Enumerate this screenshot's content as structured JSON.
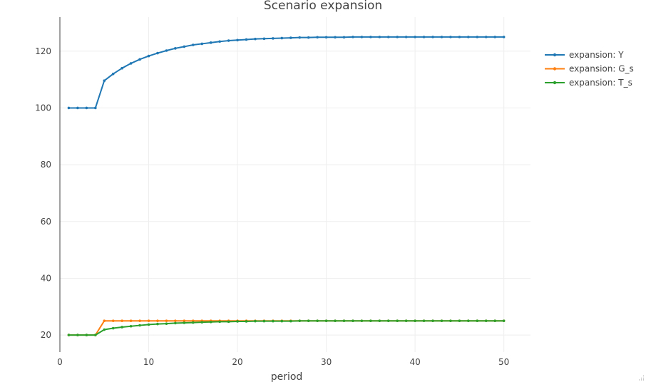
{
  "chart_data": {
    "type": "line",
    "title": "Scenario expansion",
    "xlabel": "period",
    "ylabel": "",
    "xlim": [
      0,
      53
    ],
    "ylim": [
      14,
      132
    ],
    "xticks": [
      0,
      10,
      20,
      30,
      40,
      50
    ],
    "yticks": [
      20,
      40,
      60,
      80,
      100,
      120
    ],
    "grid": true,
    "legend": "top-right",
    "x": [
      1,
      2,
      3,
      4,
      5,
      6,
      7,
      8,
      9,
      10,
      11,
      12,
      13,
      14,
      15,
      16,
      17,
      18,
      19,
      20,
      21,
      22,
      23,
      24,
      25,
      26,
      27,
      28,
      29,
      30,
      31,
      32,
      33,
      34,
      35,
      36,
      37,
      38,
      39,
      40,
      41,
      42,
      43,
      44,
      45,
      46,
      47,
      48,
      49,
      50
    ],
    "series": [
      {
        "name": "expansion: Y",
        "color": "#1f77b4",
        "values": [
          100,
          100,
          100,
          100,
          109.6,
          112.0,
          114.0,
          115.7,
          117.1,
          118.3,
          119.3,
          120.2,
          121.0,
          121.6,
          122.2,
          122.6,
          123.0,
          123.4,
          123.7,
          123.9,
          124.1,
          124.3,
          124.4,
          124.5,
          124.6,
          124.7,
          124.8,
          124.8,
          124.9,
          124.9,
          124.9,
          124.9,
          125.0,
          125.0,
          125.0,
          125.0,
          125.0,
          125.0,
          125.0,
          125.0,
          125.0,
          125.0,
          125.0,
          125.0,
          125.0,
          125.0,
          125.0,
          125.0,
          125.0,
          125.0
        ]
      },
      {
        "name": "expansion: G_s",
        "color": "#ff7f0e",
        "values": [
          20,
          20,
          20,
          20,
          25,
          25,
          25,
          25,
          25,
          25,
          25,
          25,
          25,
          25,
          25,
          25,
          25,
          25,
          25,
          25,
          25,
          25,
          25,
          25,
          25,
          25,
          25,
          25,
          25,
          25,
          25,
          25,
          25,
          25,
          25,
          25,
          25,
          25,
          25,
          25,
          25,
          25,
          25,
          25,
          25,
          25,
          25,
          25,
          25,
          25
        ]
      },
      {
        "name": "expansion: T_s",
        "color": "#2ca02c",
        "values": [
          20,
          20,
          20,
          20,
          21.9,
          22.4,
          22.8,
          23.1,
          23.4,
          23.7,
          23.9,
          24.0,
          24.2,
          24.3,
          24.4,
          24.5,
          24.6,
          24.7,
          24.7,
          24.8,
          24.8,
          24.9,
          24.9,
          24.9,
          24.9,
          24.9,
          25.0,
          25.0,
          25.0,
          25.0,
          25.0,
          25.0,
          25.0,
          25.0,
          25.0,
          25.0,
          25.0,
          25.0,
          25.0,
          25.0,
          25.0,
          25.0,
          25.0,
          25.0,
          25.0,
          25.0,
          25.0,
          25.0,
          25.0,
          25.0
        ]
      }
    ]
  }
}
